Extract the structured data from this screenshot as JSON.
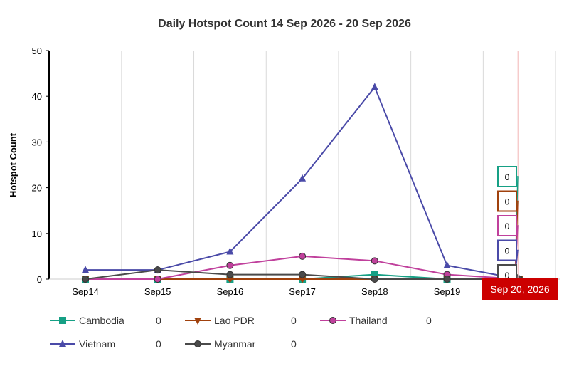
{
  "chart_data": {
    "type": "line",
    "title": "Daily Hotspot Count 14 Sep 2026 - 20 Sep 2026",
    "xlabel": "",
    "ylabel": "Hotspot Count",
    "categories": [
      "Sep14",
      "Sep15",
      "Sep16",
      "Sep17",
      "Sep18",
      "Sep19",
      "Sep20"
    ],
    "ylim": [
      0,
      50
    ],
    "yticks": [
      0,
      10,
      20,
      30,
      40,
      50
    ],
    "grid": "vertical",
    "legend_position": "bottom",
    "series": [
      {
        "name": "Cambodia",
        "color": "#16a085",
        "marker": "square",
        "values": [
          0,
          0,
          0,
          0,
          1,
          0,
          0
        ],
        "legend_value": "0"
      },
      {
        "name": "Lao PDR",
        "color": "#a0410d",
        "marker": "triangle-down",
        "values": [
          0,
          0,
          0,
          0,
          0,
          0,
          0
        ],
        "legend_value": "0"
      },
      {
        "name": "Thailand",
        "color": "#c0409c",
        "marker": "circle",
        "values": [
          0,
          0,
          3,
          5,
          4,
          1,
          0
        ],
        "legend_value": "0"
      },
      {
        "name": "Vietnam",
        "color": "#4a4aa8",
        "marker": "triangle",
        "values": [
          2,
          2,
          6,
          22,
          42,
          3,
          0
        ],
        "legend_value": "0"
      },
      {
        "name": "Myanmar",
        "color": "#4a4a4a",
        "marker": "circle",
        "values": [
          0,
          2,
          1,
          1,
          0,
          0,
          0
        ],
        "legend_value": "0"
      }
    ],
    "tooltip": {
      "category_index": 6,
      "label": "Sep 20, 2026",
      "label_color": "#cc0000",
      "values": [
        "0",
        "0",
        "0",
        "0",
        "0"
      ],
      "border_colors": [
        "#16a085",
        "#a0410d",
        "#c0409c",
        "#4a4aa8",
        "#4a4a4a"
      ]
    }
  }
}
